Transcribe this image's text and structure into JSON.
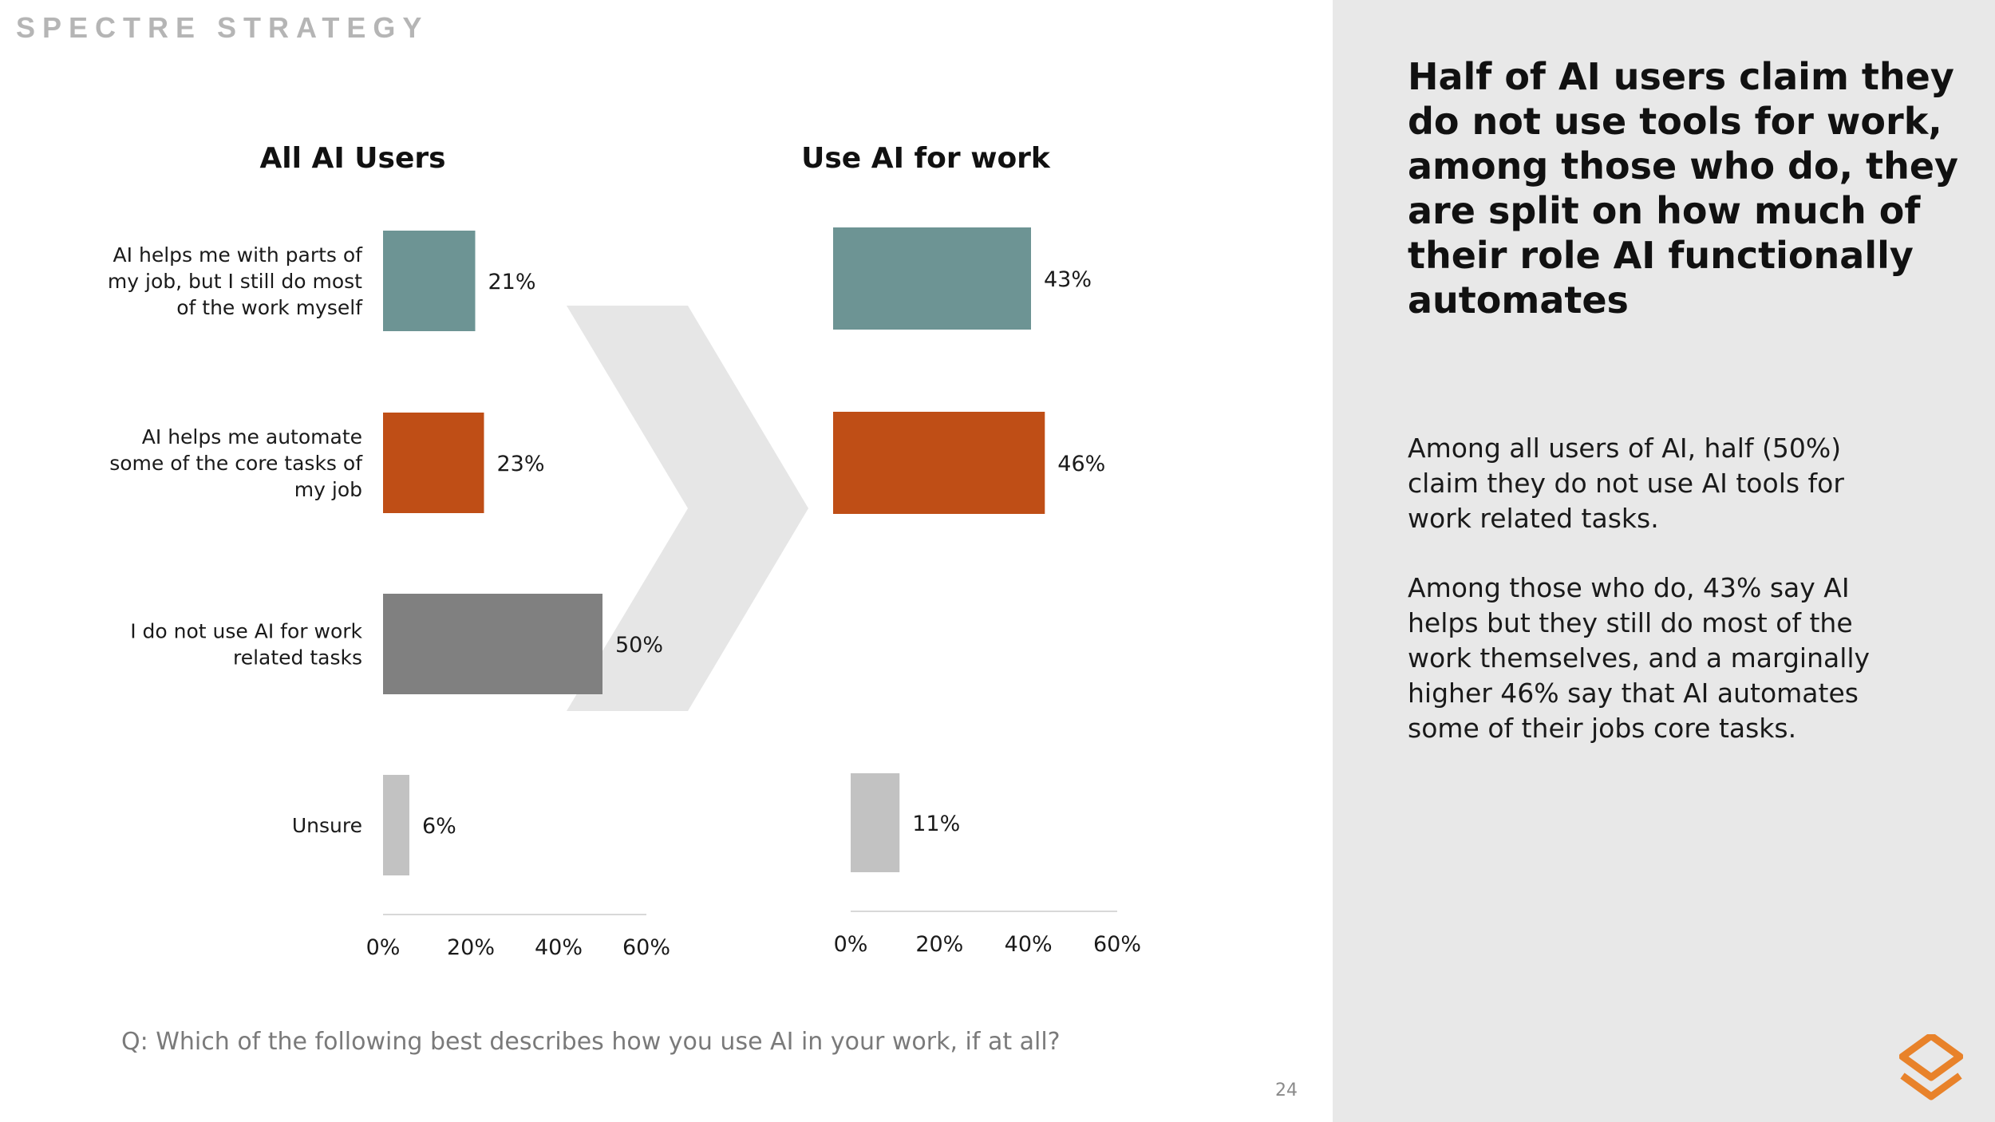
{
  "brand": "SPECTRE STRATEGY",
  "colors": {
    "teal": "#6d9494",
    "orange": "#bf4e16",
    "dark_gray": "#808080",
    "light_gray": "#c2c2c2",
    "chevron": "#e6e6e6",
    "panel": "#e8e8e8",
    "logo": "#e8822a"
  },
  "chart_data": [
    {
      "type": "bar",
      "orientation": "horizontal",
      "title": "All AI Users",
      "categories": [
        "AI helps me with parts of my job, but I still do most of the work myself",
        "AI helps me automate some of the core tasks of my job",
        "I do not use AI for work related tasks",
        "Unsure"
      ],
      "category_lines": [
        [
          "AI helps me with parts of",
          "my job, but I still do most",
          "of the work myself"
        ],
        [
          "AI helps me automate",
          "some of the core tasks of",
          "my job"
        ],
        [
          "I do not use AI for work",
          "related tasks"
        ],
        [
          "Unsure"
        ]
      ],
      "values": [
        21,
        23,
        50,
        6
      ],
      "value_labels": [
        "21%",
        "23%",
        "50%",
        "6%"
      ],
      "xlim": [
        0,
        60
      ],
      "ticks": [
        "0%",
        "20%",
        "40%",
        "60%"
      ],
      "tick_values": [
        0,
        20,
        40,
        60
      ]
    },
    {
      "type": "bar",
      "orientation": "horizontal",
      "title": "Use AI for work",
      "categories": [
        "AI helps me with parts of my job, but I still do most of the work myself",
        "AI helps me automate some of the core tasks of my job",
        "Unsure"
      ],
      "values": [
        43,
        46,
        11
      ],
      "value_labels": [
        "43%",
        "46%",
        "11%"
      ],
      "xlim": [
        0,
        60
      ],
      "ticks": [
        "0%",
        "20%",
        "40%",
        "60%"
      ],
      "tick_values": [
        0,
        20,
        40,
        60
      ]
    }
  ],
  "question": "Q: Which of the following best describes how you use AI in your work, if at all?",
  "page_number": "24",
  "sidebar": {
    "headline": "Half of AI users claim they do not use tools for work, among those who do, they are split on how much of their role AI functionally automates",
    "paragraph1": "Among all users of AI, half (50%) claim they do not use AI tools for work related tasks.",
    "paragraph2": "Among those who do, 43% say AI helps but they still do most of the work themselves, and a marginally higher 46% say that AI automates some of their jobs core tasks."
  },
  "logo_icon": "spectre-logo-icon"
}
